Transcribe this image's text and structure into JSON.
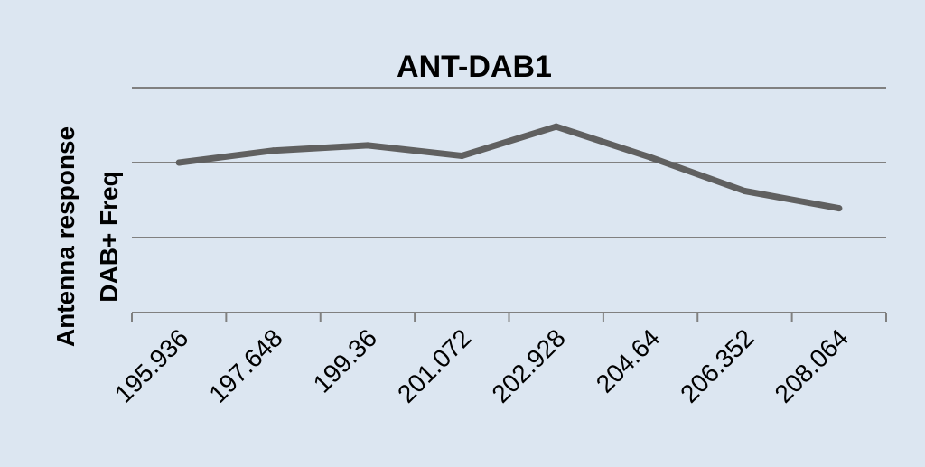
{
  "chart_data": {
    "type": "line",
    "title": "ANT-DAB1",
    "ylabel_lines": [
      "Antenna response",
      "DAB+ Freq"
    ],
    "xlabel": "",
    "categories": [
      "195.936",
      "197.648",
      "199.36",
      "201.072",
      "202.928",
      "204.64",
      "206.352",
      "208.064"
    ],
    "series": [
      {
        "values": [
          2.0,
          2.16,
          2.23,
          2.09,
          2.48,
          2.07,
          1.62,
          1.39
        ]
      }
    ],
    "ylim": [
      0,
      3
    ],
    "grid": true,
    "legend": "none",
    "colors": {
      "background": "#dce6f1",
      "line": "#606060",
      "grid": "#808080",
      "axis": "#808080"
    }
  }
}
